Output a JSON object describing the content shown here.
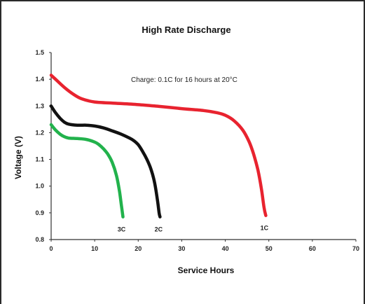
{
  "chart_data": {
    "type": "line",
    "title": "High Rate Discharge",
    "xlabel": "Service Hours",
    "ylabel": "Voltage (V)",
    "xlim": [
      0,
      70
    ],
    "ylim": [
      0.8,
      1.5
    ],
    "xticks": [
      "0",
      "10",
      "20",
      "30",
      "40",
      "50",
      "60",
      "70"
    ],
    "yticks": [
      "0.8",
      "0.9",
      "1.0",
      "1.1",
      "1.2",
      "1.3",
      "1.4",
      "1.5"
    ],
    "annotation": "Charge: 0.1C for 16 hours at 20°C",
    "grid": false,
    "series": [
      {
        "name": "3C",
        "color": "#22b24c",
        "points": [
          [
            0,
            1.23
          ],
          [
            1,
            1.21
          ],
          [
            2,
            1.195
          ],
          [
            3,
            1.185
          ],
          [
            4,
            1.18
          ],
          [
            6,
            1.178
          ],
          [
            8,
            1.175
          ],
          [
            10,
            1.165
          ],
          [
            11,
            1.155
          ],
          [
            12,
            1.14
          ],
          [
            13,
            1.12
          ],
          [
            14,
            1.09
          ],
          [
            15,
            1.04
          ],
          [
            15.7,
            0.98
          ],
          [
            16.2,
            0.92
          ],
          [
            16.5,
            0.885
          ]
        ]
      },
      {
        "name": "2C",
        "color": "#111111",
        "points": [
          [
            0,
            1.3
          ],
          [
            1,
            1.275
          ],
          [
            2,
            1.255
          ],
          [
            3,
            1.24
          ],
          [
            4,
            1.232
          ],
          [
            6,
            1.228
          ],
          [
            8,
            1.228
          ],
          [
            10,
            1.225
          ],
          [
            12,
            1.218
          ],
          [
            14,
            1.207
          ],
          [
            16,
            1.195
          ],
          [
            18,
            1.18
          ],
          [
            19,
            1.17
          ],
          [
            20,
            1.155
          ],
          [
            21,
            1.13
          ],
          [
            22,
            1.1
          ],
          [
            23,
            1.06
          ],
          [
            23.8,
            1.01
          ],
          [
            24.4,
            0.95
          ],
          [
            24.8,
            0.9
          ],
          [
            25,
            0.885
          ]
        ]
      },
      {
        "name": "1C",
        "color": "#e8232f",
        "points": [
          [
            0,
            1.415
          ],
          [
            1,
            1.4
          ],
          [
            3,
            1.37
          ],
          [
            5,
            1.345
          ],
          [
            7,
            1.327
          ],
          [
            10,
            1.315
          ],
          [
            15,
            1.31
          ],
          [
            20,
            1.305
          ],
          [
            25,
            1.298
          ],
          [
            30,
            1.29
          ],
          [
            35,
            1.283
          ],
          [
            38,
            1.275
          ],
          [
            40,
            1.265
          ],
          [
            42,
            1.245
          ],
          [
            44,
            1.21
          ],
          [
            45.5,
            1.165
          ],
          [
            46.5,
            1.12
          ],
          [
            47.5,
            1.06
          ],
          [
            48.3,
            0.99
          ],
          [
            48.9,
            0.92
          ],
          [
            49.3,
            0.89
          ]
        ]
      }
    ]
  }
}
